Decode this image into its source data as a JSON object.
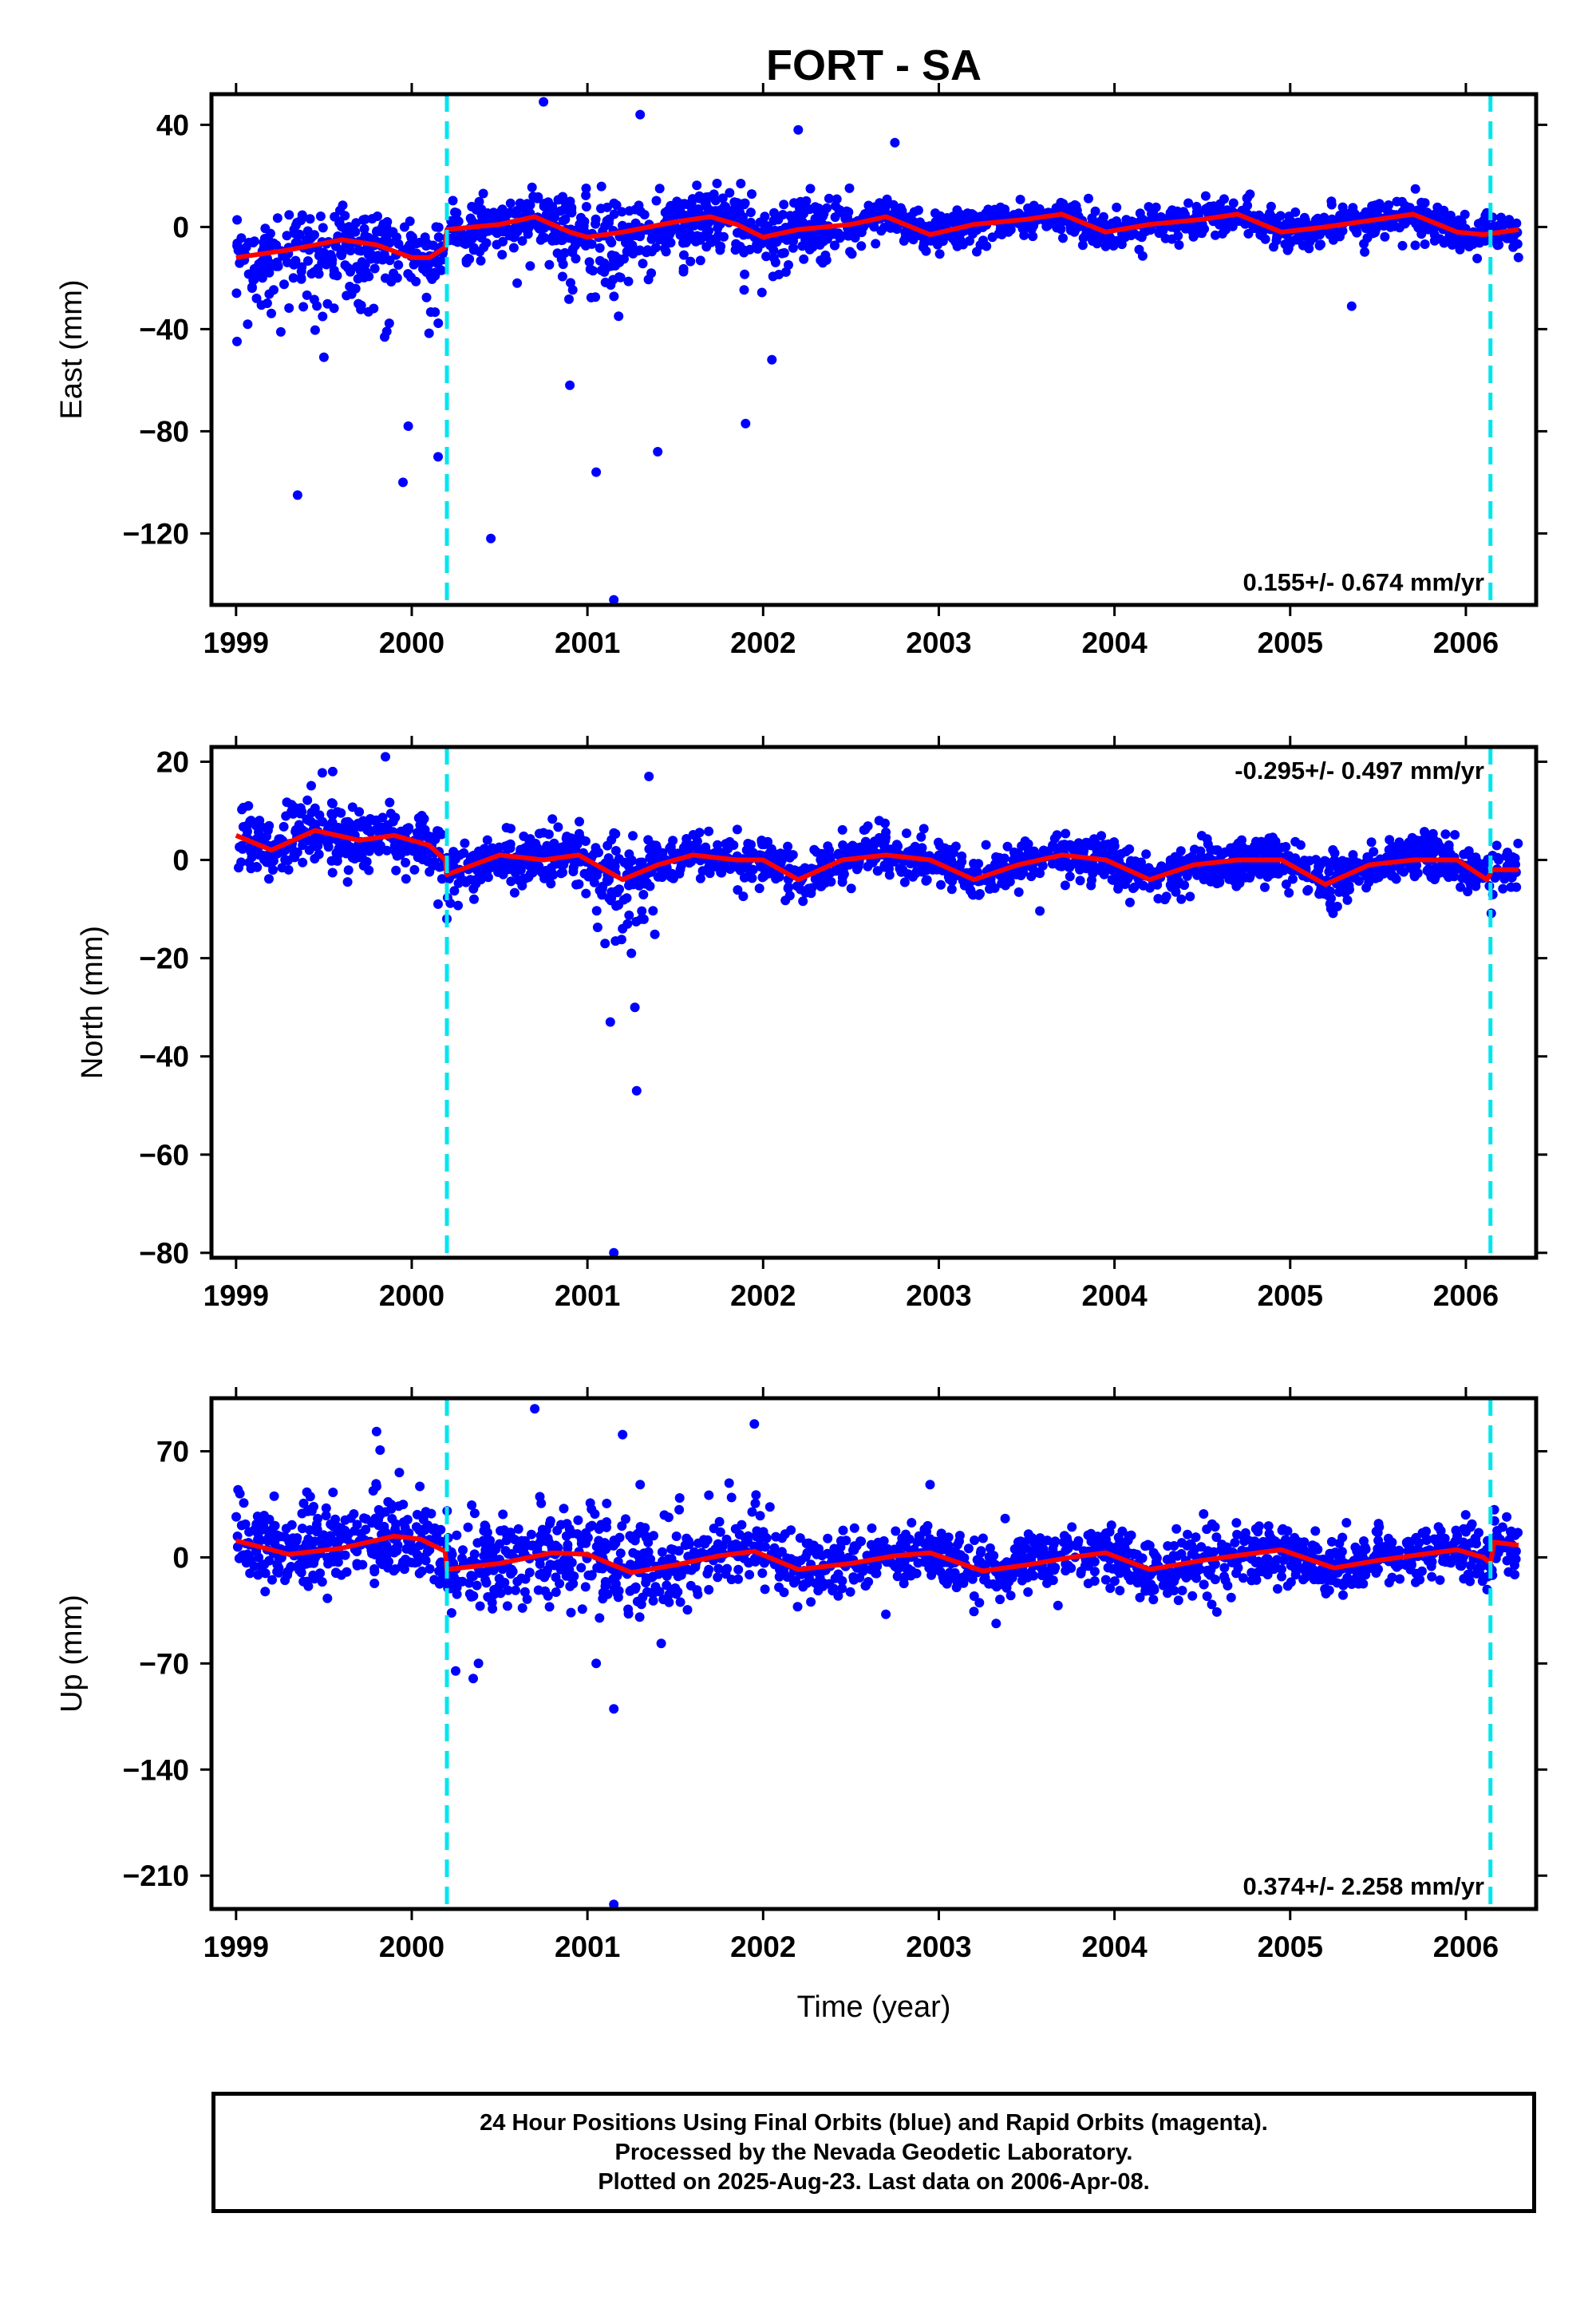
{
  "title": "FORT - SA",
  "xlabel": "Time (year)",
  "footer": {
    "line1": "24 Hour Positions Using Final Orbits (blue) and Rapid Orbits (magenta).",
    "line2": "Processed by the Nevada Geodetic Laboratory.",
    "line3": "Plotted on 2025-Aug-23. Last data on 2006-Apr-08."
  },
  "colors": {
    "points": "#0000ff",
    "model": "#ff0000",
    "offsets": "#00e5ee",
    "frame": "#000000"
  },
  "chart_data": [
    {
      "type": "scatter",
      "ylabel": "East (mm)",
      "rate_label": "0.155+/- 0.674 mm/yr",
      "rate_position": "bottom-right",
      "xlim": [
        1998.86,
        2006.4
      ],
      "ylim": [
        -148,
        52
      ],
      "xticks": [
        1999,
        2000,
        2001,
        2002,
        2003,
        2004,
        2005,
        2006
      ],
      "yticks": [
        40,
        0,
        -40,
        -80,
        -120
      ],
      "ytick_labels": [
        "40",
        "0",
        "−40",
        "−80",
        "−120"
      ],
      "offset_lines": [
        2000.2,
        2006.14
      ],
      "model_line": [
        [
          1999.0,
          -12
        ],
        [
          1999.3,
          -9
        ],
        [
          1999.6,
          -5
        ],
        [
          1999.8,
          -7
        ],
        [
          2000.0,
          -12
        ],
        [
          2000.1,
          -12
        ],
        [
          2000.19,
          -8
        ],
        [
          2000.2,
          -1
        ],
        [
          2000.5,
          1
        ],
        [
          2000.7,
          4
        ],
        [
          2000.9,
          -2
        ],
        [
          2001.0,
          -4
        ],
        [
          2001.2,
          -2
        ],
        [
          2001.5,
          2
        ],
        [
          2001.7,
          4
        ],
        [
          2001.85,
          1
        ],
        [
          2002.0,
          -4
        ],
        [
          2002.2,
          -1
        ],
        [
          2002.5,
          1
        ],
        [
          2002.7,
          4
        ],
        [
          2002.95,
          -3
        ],
        [
          2003.2,
          1
        ],
        [
          2003.5,
          3
        ],
        [
          2003.7,
          5
        ],
        [
          2003.95,
          -2
        ],
        [
          2004.2,
          1
        ],
        [
          2004.5,
          3
        ],
        [
          2004.7,
          5
        ],
        [
          2004.95,
          -2
        ],
        [
          2005.2,
          0
        ],
        [
          2005.5,
          3
        ],
        [
          2005.7,
          5
        ],
        [
          2005.95,
          -2
        ],
        [
          2006.1,
          -3
        ],
        [
          2006.3,
          -1
        ]
      ],
      "outliers": [
        [
          1999.35,
          -105
        ],
        [
          1999.95,
          -100
        ],
        [
          2000.45,
          -122
        ],
        [
          2001.15,
          -146
        ],
        [
          2001.3,
          44
        ],
        [
          2000.75,
          49
        ],
        [
          2001.05,
          -96
        ],
        [
          2001.4,
          -88
        ],
        [
          2002.2,
          38
        ],
        [
          2002.75,
          33
        ],
        [
          2001.9,
          -77
        ],
        [
          2000.9,
          -62
        ],
        [
          2000.15,
          -90
        ],
        [
          1999.98,
          -78
        ],
        [
          2005.35,
          -31
        ],
        [
          2002.05,
          -52
        ],
        [
          1999.5,
          -51
        ],
        [
          2000.6,
          -22
        ]
      ],
      "segments": [
        {
          "x0": 1999.0,
          "x1": 2000.18,
          "n": 300,
          "seed": 11,
          "noise": 6,
          "spike": 0.28,
          "spike_dir": -1,
          "spike_mag": 28
        },
        {
          "x0": 2000.2,
          "x1": 2000.85,
          "n": 180,
          "seed": 12,
          "noise": 5,
          "spike": 0.05,
          "spike_dir": -1,
          "spike_mag": 15
        },
        {
          "x0": 2000.85,
          "x1": 2001.25,
          "n": 110,
          "seed": 13,
          "noise": 9,
          "spike": 0.28,
          "spike_dir": -1,
          "spike_mag": 32
        },
        {
          "x0": 2001.25,
          "x1": 2001.75,
          "n": 150,
          "seed": 14,
          "noise": 6,
          "spike": 0.06,
          "spike_dir": -1,
          "spike_mag": 18
        },
        {
          "x0": 2001.75,
          "x1": 2002.15,
          "n": 100,
          "seed": 15,
          "noise": 7,
          "spike": 0.1,
          "spike_dir": -1,
          "spike_mag": 18
        },
        {
          "x0": 2002.15,
          "x1": 2002.5,
          "n": 110,
          "seed": 16,
          "noise": 6,
          "spike": 0.08,
          "spike_dir": 1,
          "spike_mag": 12
        },
        {
          "x0": 2002.5,
          "x1": 2006.3,
          "n": 950,
          "seed": 17,
          "noise": 3.5,
          "spike": 0.015,
          "spike_dir": -1,
          "spike_mag": 14
        }
      ]
    },
    {
      "type": "scatter",
      "ylabel": "North (mm)",
      "rate_label": "-0.295+/- 0.497 mm/yr",
      "rate_position": "top-right",
      "xlim": [
        1998.86,
        2006.4
      ],
      "ylim": [
        -81,
        23
      ],
      "xticks": [
        1999,
        2000,
        2001,
        2002,
        2003,
        2004,
        2005,
        2006
      ],
      "yticks": [
        20,
        0,
        -20,
        -40,
        -60,
        -80
      ],
      "ytick_labels": [
        "20",
        "0",
        "−20",
        "−40",
        "−60",
        "−80"
      ],
      "offset_lines": [
        2000.2,
        2006.14
      ],
      "model_line": [
        [
          1999.0,
          5
        ],
        [
          1999.2,
          2
        ],
        [
          1999.45,
          6
        ],
        [
          1999.7,
          4
        ],
        [
          1999.9,
          5
        ],
        [
          2000.1,
          3
        ],
        [
          2000.19,
          0
        ],
        [
          2000.2,
          -3
        ],
        [
          2000.5,
          1
        ],
        [
          2000.75,
          0
        ],
        [
          2000.95,
          1
        ],
        [
          2001.2,
          -4
        ],
        [
          2001.4,
          -1
        ],
        [
          2001.6,
          1
        ],
        [
          2001.85,
          0
        ],
        [
          2002.0,
          0
        ],
        [
          2002.2,
          -4
        ],
        [
          2002.45,
          0
        ],
        [
          2002.7,
          1
        ],
        [
          2002.95,
          0
        ],
        [
          2003.2,
          -4
        ],
        [
          2003.45,
          -1
        ],
        [
          2003.7,
          1
        ],
        [
          2003.95,
          0
        ],
        [
          2004.2,
          -4
        ],
        [
          2004.45,
          -1
        ],
        [
          2004.7,
          0
        ],
        [
          2004.95,
          0
        ],
        [
          2005.2,
          -5
        ],
        [
          2005.45,
          -1
        ],
        [
          2005.7,
          0
        ],
        [
          2005.95,
          0
        ],
        [
          2006.12,
          -4
        ],
        [
          2006.15,
          -2
        ],
        [
          2006.3,
          -2
        ]
      ],
      "outliers": [
        [
          2001.15,
          -80
        ],
        [
          2001.28,
          -47
        ],
        [
          2001.13,
          -33
        ],
        [
          2001.27,
          -30
        ],
        [
          2001.25,
          -19
        ],
        [
          1999.85,
          21
        ],
        [
          2001.35,
          17
        ],
        [
          1999.55,
          18
        ],
        [
          2000.15,
          -9
        ],
        [
          2000.2,
          -12
        ],
        [
          2001.1,
          -17
        ],
        [
          2001.2,
          -14
        ]
      ],
      "segments": [
        {
          "x0": 1999.0,
          "x1": 2000.18,
          "n": 330,
          "seed": 21,
          "noise": 3.2,
          "spike": 0.05,
          "spike_dir": 1,
          "spike_mag": 8
        },
        {
          "x0": 2000.2,
          "x1": 2001.05,
          "n": 230,
          "seed": 22,
          "noise": 2.8,
          "spike": 0.03,
          "spike_dir": -1,
          "spike_mag": 7
        },
        {
          "x0": 2001.05,
          "x1": 2001.4,
          "n": 100,
          "seed": 23,
          "noise": 3.5,
          "spike": 0.12,
          "spike_dir": -1,
          "spike_mag": 10
        },
        {
          "x0": 2001.4,
          "x1": 2006.3,
          "n": 1250,
          "seed": 24,
          "noise": 2.3,
          "spike": 0.01,
          "spike_dir": -1,
          "spike_mag": 6
        }
      ]
    },
    {
      "type": "scatter",
      "ylabel": "Up (mm)",
      "rate_label": "0.374+/- 2.258 mm/yr",
      "rate_position": "bottom-right",
      "xlim": [
        1998.86,
        2006.4
      ],
      "ylim": [
        -232,
        105
      ],
      "xticks": [
        1999,
        2000,
        2001,
        2002,
        2003,
        2004,
        2005,
        2006
      ],
      "yticks": [
        70,
        0,
        -70,
        -140,
        -210
      ],
      "ytick_labels": [
        "70",
        "0",
        "−70",
        "−140",
        "−210"
      ],
      "offset_lines": [
        2000.2,
        2006.14
      ],
      "model_line": [
        [
          1999.0,
          11
        ],
        [
          1999.3,
          2
        ],
        [
          1999.6,
          6
        ],
        [
          1999.9,
          14
        ],
        [
          2000.05,
          12
        ],
        [
          2000.19,
          4
        ],
        [
          2000.2,
          -8
        ],
        [
          2000.5,
          -4
        ],
        [
          2000.8,
          3
        ],
        [
          2001.0,
          2
        ],
        [
          2001.25,
          -10
        ],
        [
          2001.5,
          -5
        ],
        [
          2001.75,
          1
        ],
        [
          2001.95,
          4
        ],
        [
          2002.2,
          -8
        ],
        [
          2002.5,
          -4
        ],
        [
          2002.75,
          1
        ],
        [
          2002.95,
          3
        ],
        [
          2003.25,
          -9
        ],
        [
          2003.5,
          -5
        ],
        [
          2003.75,
          0
        ],
        [
          2003.95,
          3
        ],
        [
          2004.2,
          -8
        ],
        [
          2004.5,
          -2
        ],
        [
          2004.75,
          2
        ],
        [
          2004.95,
          5
        ],
        [
          2005.25,
          -7
        ],
        [
          2005.5,
          -2
        ],
        [
          2005.75,
          2
        ],
        [
          2005.95,
          5
        ],
        [
          2006.1,
          0
        ],
        [
          2006.14,
          -4
        ],
        [
          2006.16,
          10
        ],
        [
          2006.3,
          8
        ]
      ],
      "outliers": [
        [
          2000.7,
          98
        ],
        [
          1999.8,
          83
        ],
        [
          2001.2,
          81
        ],
        [
          2001.95,
          88
        ],
        [
          2001.15,
          -100
        ],
        [
          2001.15,
          -229
        ],
        [
          2000.25,
          -75
        ],
        [
          2000.35,
          -80
        ],
        [
          2001.3,
          48
        ],
        [
          2000.38,
          -70
        ],
        [
          2002.95,
          48
        ],
        [
          2001.05,
          -70
        ]
      ],
      "segments": [
        {
          "x0": 1999.0,
          "x1": 2000.18,
          "n": 330,
          "seed": 31,
          "noise": 13,
          "spike": 0.1,
          "spike_dir": 1,
          "spike_mag": 35
        },
        {
          "x0": 2000.2,
          "x1": 2001.75,
          "n": 400,
          "seed": 32,
          "noise": 16,
          "spike": 0.06,
          "spike_dir": -1,
          "spike_mag": 30
        },
        {
          "x0": 2001.75,
          "x1": 2002.05,
          "n": 60,
          "seed": 33,
          "noise": 9,
          "spike": 0.3,
          "spike_dir": 1,
          "spike_mag": 35
        },
        {
          "x0": 2002.05,
          "x1": 2006.3,
          "n": 1050,
          "seed": 34,
          "noise": 10,
          "spike": 0.02,
          "spike_dir": -1,
          "spike_mag": 25
        }
      ]
    }
  ]
}
